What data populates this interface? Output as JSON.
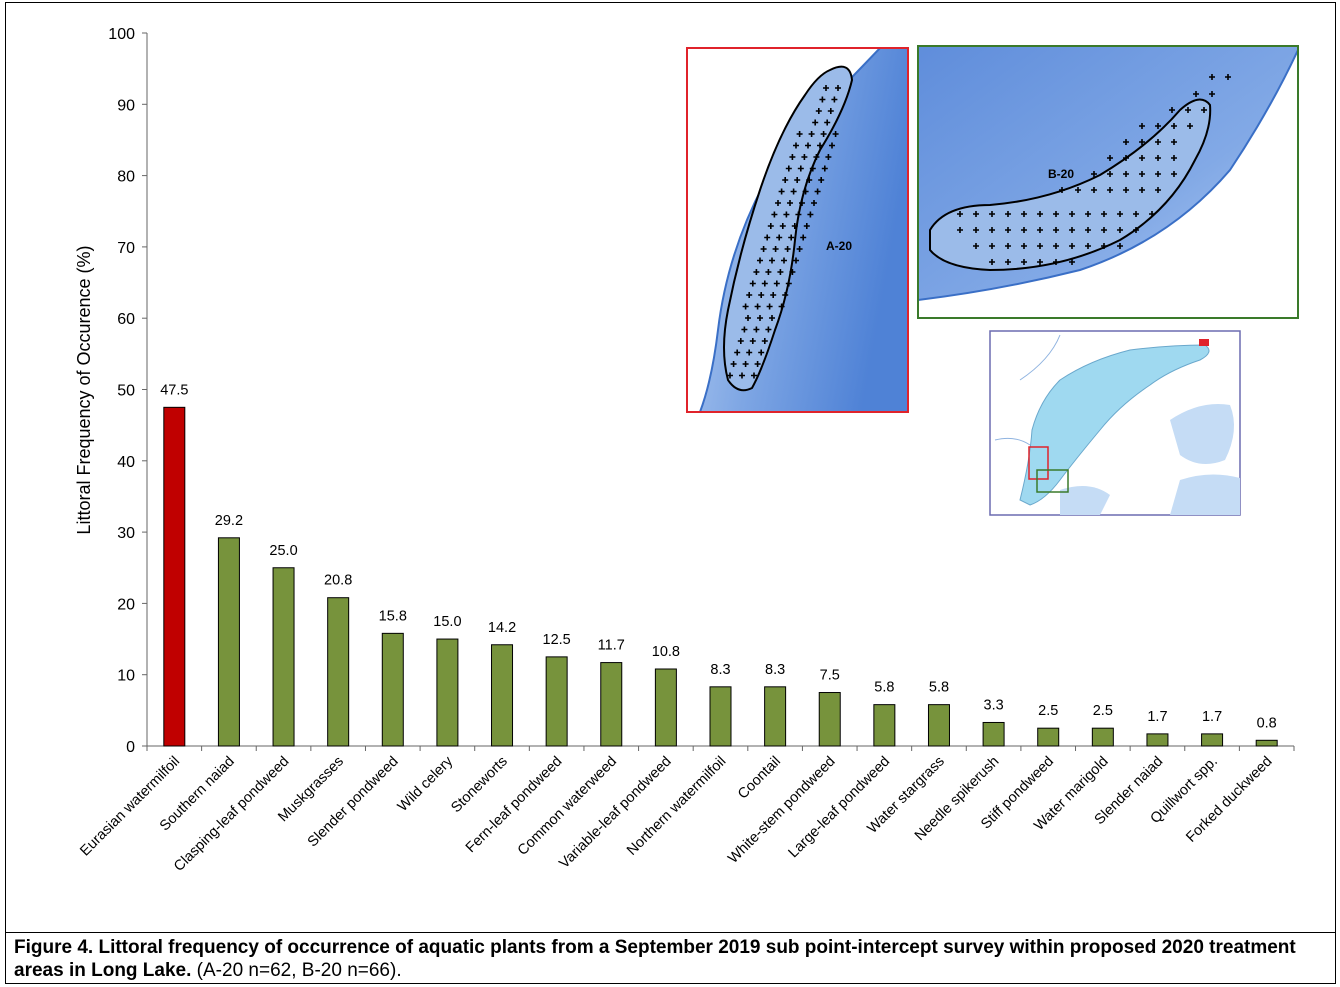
{
  "chart_data": {
    "type": "bar",
    "ylabel": "Littoral Frequency of Occurence (%)",
    "xlabel": "",
    "ylim": [
      0,
      100
    ],
    "yticks": [
      0,
      10,
      20,
      30,
      40,
      50,
      60,
      70,
      80,
      90,
      100
    ],
    "grid": false,
    "categories": [
      "Eurasian watermilfoil",
      "Southern naiad",
      "Clasping-leaf pondweed",
      "Muskgrasses",
      "Slender pondweed",
      "Wild celery",
      "Stoneworts",
      "Fern-leaf pondweed",
      "Common waterweed",
      "Variable-leaf pondweed",
      "Northern watermilfoil",
      "Coontail",
      "White-stem pondweed",
      "Large-leaf pondweed",
      "Water stargrass",
      "Needle spikerush",
      "Stiff pondweed",
      "Water marigold",
      "Slender naiad",
      "Quillwort spp.",
      "Forked duckweed"
    ],
    "values": [
      47.5,
      29.2,
      25.0,
      20.8,
      15.8,
      15.0,
      14.2,
      12.5,
      11.7,
      10.8,
      8.3,
      8.3,
      7.5,
      5.8,
      5.8,
      3.3,
      2.5,
      2.5,
      1.7,
      1.7,
      0.8
    ],
    "value_labels": [
      "47.5",
      "29.2",
      "25.0",
      "20.8",
      "15.8",
      "15.0",
      "14.2",
      "12.5",
      "11.7",
      "10.8",
      "8.3",
      "8.3",
      "7.5",
      "5.8",
      "5.8",
      "3.3",
      "2.5",
      "2.5",
      "1.7",
      "1.7",
      "0.8"
    ],
    "bar_colors": [
      "#c00000",
      "#77933c",
      "#77933c",
      "#77933c",
      "#77933c",
      "#77933c",
      "#77933c",
      "#77933c",
      "#77933c",
      "#77933c",
      "#77933c",
      "#77933c",
      "#77933c",
      "#77933c",
      "#77933c",
      "#77933c",
      "#77933c",
      "#77933c",
      "#77933c",
      "#77933c",
      "#77933c"
    ]
  },
  "insets": {
    "map_a_label": "A-20",
    "map_b_label": "B-20",
    "map_a_frame_color": "#e0232b",
    "map_b_frame_color": "#3a7a2a",
    "water_color": "#5b8fd9",
    "lake_color": "#9fd9f0"
  },
  "caption": {
    "bold": "Figure 4.  Littoral frequency of occurrence of aquatic plants from a September 2019 sub point-intercept survey within proposed 2020 treatment areas in Long Lake.",
    "normal": " (A-20 n=62, B-20 n=66)."
  }
}
